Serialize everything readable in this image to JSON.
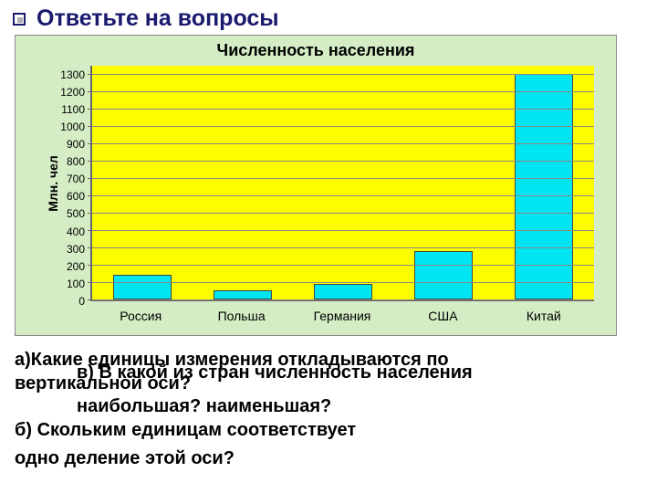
{
  "heading": "Ответьте на вопросы",
  "chart": {
    "type": "bar",
    "title": "Численность населения",
    "ylabel": "Млн. чел",
    "categories": [
      "Россия",
      "Польша",
      "Германия",
      "США",
      "Китай"
    ],
    "values": [
      140,
      55,
      90,
      280,
      1300
    ],
    "bar_color": "#00e5f2",
    "bar_border": "#444444",
    "plot_bg": "#fdfd00",
    "panel_bg": "#d5edc5",
    "grid_color": "#888888",
    "axis_color": "#666666",
    "ymin": 0,
    "ymax": 1350,
    "ytick_step": 100,
    "yticks": [
      0,
      100,
      200,
      300,
      400,
      500,
      600,
      700,
      800,
      900,
      1000,
      1100,
      1200,
      1300
    ],
    "bar_width_ratio": 0.58,
    "title_fontsize": 18,
    "label_fontsize": 14,
    "tick_fontsize": 12
  },
  "questions": {
    "a": "а)Какие единицы измерения откладываются по",
    "a2_overlap": "вертикальной оси?",
    "c_frag": "в) В какой из стран численность населения",
    "c2": "наибольшая? наименьшая?",
    "b": "б) Скольким единицам соответствует",
    "b2": "одно деление этой оси?"
  },
  "colors": {
    "heading": "#1a1a6e",
    "text": "#000000",
    "page_bg": "#ffffff"
  }
}
